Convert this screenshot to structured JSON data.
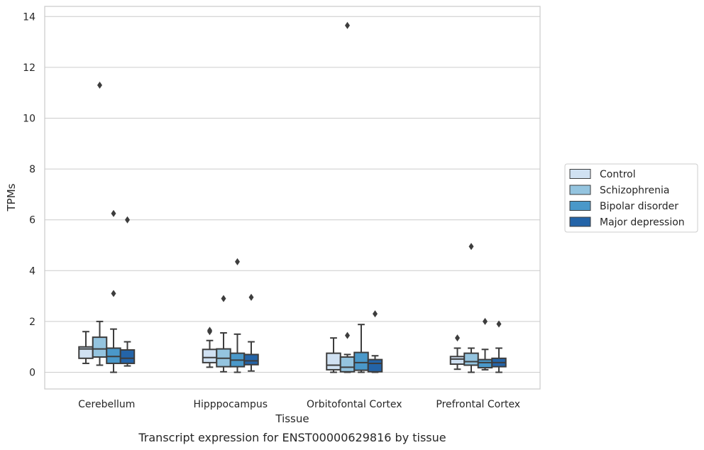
{
  "chart_data": {
    "type": "box",
    "title": "Transcript expression for ENST00000629816 by tissue",
    "xlabel": "Tissue",
    "ylabel": "TPMs",
    "ylim": [
      -0.65,
      14.35
    ],
    "yticks": [
      0,
      2,
      4,
      6,
      8,
      10,
      12,
      14
    ],
    "grid": true,
    "legend_position": "right",
    "categories": [
      "Cerebellum",
      "Hipppocampus",
      "Orbitofontal Cortex",
      "Prefrontal Cortex"
    ],
    "series": [
      {
        "name": "Control",
        "color": "#d0e1f2",
        "boxes": [
          {
            "whislo": 0.35,
            "q1": 0.55,
            "med": 0.92,
            "q3": 1.0,
            "whishi": 1.6,
            "fliers": []
          },
          {
            "whislo": 0.2,
            "q1": 0.38,
            "med": 0.58,
            "q3": 0.9,
            "whishi": 1.25,
            "fliers": [
              1.6,
              1.65
            ]
          },
          {
            "whislo": 0.0,
            "q1": 0.1,
            "med": 0.28,
            "q3": 0.75,
            "whishi": 1.35,
            "fliers": []
          },
          {
            "whislo": 0.12,
            "q1": 0.32,
            "med": 0.52,
            "q3": 0.62,
            "whishi": 0.95,
            "fliers": [
              1.35
            ]
          }
        ]
      },
      {
        "name": "Schizophrenia",
        "color": "#94c4df",
        "boxes": [
          {
            "whislo": 0.28,
            "q1": 0.6,
            "med": 0.92,
            "q3": 1.38,
            "whishi": 2.0,
            "fliers": [
              11.3
            ]
          },
          {
            "whislo": 0.02,
            "q1": 0.22,
            "med": 0.55,
            "q3": 0.92,
            "whishi": 1.55,
            "fliers": [
              2.9
            ]
          },
          {
            "whislo": 0.0,
            "q1": 0.02,
            "med": 0.2,
            "q3": 0.6,
            "whishi": 0.7,
            "fliers": [
              1.45,
              13.65
            ]
          },
          {
            "whislo": 0.0,
            "q1": 0.28,
            "med": 0.42,
            "q3": 0.75,
            "whishi": 0.95,
            "fliers": [
              4.95
            ]
          }
        ]
      },
      {
        "name": "Bipolar disorder",
        "color": "#4a98c9",
        "boxes": [
          {
            "whislo": 0.0,
            "q1": 0.35,
            "med": 0.62,
            "q3": 0.95,
            "whishi": 1.7,
            "fliers": [
              6.25,
              3.1
            ]
          },
          {
            "whislo": 0.0,
            "q1": 0.22,
            "med": 0.48,
            "q3": 0.75,
            "whishi": 1.5,
            "fliers": [
              4.35
            ]
          },
          {
            "whislo": 0.0,
            "q1": 0.08,
            "med": 0.38,
            "q3": 0.78,
            "whishi": 1.88,
            "fliers": []
          },
          {
            "whislo": 0.1,
            "q1": 0.18,
            "med": 0.38,
            "q3": 0.5,
            "whishi": 0.9,
            "fliers": [
              2.0
            ]
          }
        ]
      },
      {
        "name": "Major depression",
        "color": "#2464a8",
        "boxes": [
          {
            "whislo": 0.25,
            "q1": 0.35,
            "med": 0.55,
            "q3": 0.88,
            "whishi": 1.2,
            "fliers": [
              6.0
            ]
          },
          {
            "whislo": 0.05,
            "q1": 0.3,
            "med": 0.45,
            "q3": 0.7,
            "whishi": 1.2,
            "fliers": [
              2.95
            ]
          },
          {
            "whislo": 0.0,
            "q1": 0.02,
            "med": 0.35,
            "q3": 0.5,
            "whishi": 0.65,
            "fliers": [
              2.3
            ]
          },
          {
            "whislo": 0.0,
            "q1": 0.22,
            "med": 0.38,
            "q3": 0.55,
            "whishi": 0.95,
            "fliers": [
              1.9
            ]
          }
        ]
      }
    ]
  }
}
